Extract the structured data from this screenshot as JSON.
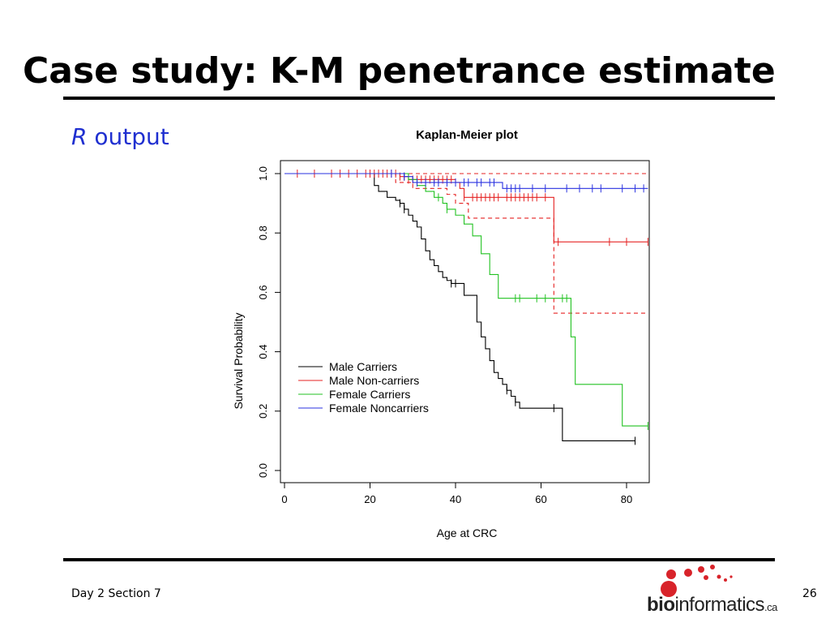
{
  "slide": {
    "title": "Case study: K-M penetrance estimate",
    "subtitle_italic": "R",
    "subtitle_rest": " output",
    "footer_left": "Day 2 Section 7",
    "page_number": "26"
  },
  "logo": {
    "text_bold": "bio",
    "text_regular": "informatics",
    "text_suffix": ".ca",
    "colors": {
      "dots": "#d8232a",
      "text": "#222222"
    }
  },
  "chart_data": {
    "type": "line",
    "subtype": "step",
    "title": "Kaplan-Meier plot",
    "xlabel": "Age at CRC",
    "ylabel": "Survival Probability",
    "xlim": [
      0,
      85
    ],
    "ylim": [
      0,
      1.0
    ],
    "x_ticks": [
      "0",
      "20",
      "40",
      "60",
      "80"
    ],
    "y_ticks": [
      "0.0",
      "0.2",
      "0.4",
      "0.6",
      "0.8",
      "1.0"
    ],
    "legend_position": "bottom-left",
    "grid": false,
    "series": [
      {
        "name": "Male Carriers",
        "color": "#000000",
        "dash": false,
        "x": [
          0,
          21,
          22,
          24,
          26,
          27,
          28,
          29,
          30,
          31,
          32,
          33,
          34,
          35,
          36,
          37,
          38,
          39,
          42,
          45,
          46,
          47,
          48,
          49,
          50,
          51,
          52,
          53,
          54,
          55,
          63,
          65,
          82
        ],
        "y": [
          1.0,
          0.96,
          0.94,
          0.92,
          0.91,
          0.9,
          0.88,
          0.86,
          0.84,
          0.82,
          0.78,
          0.74,
          0.71,
          0.69,
          0.67,
          0.65,
          0.64,
          0.63,
          0.59,
          0.5,
          0.45,
          0.41,
          0.37,
          0.33,
          0.31,
          0.29,
          0.27,
          0.25,
          0.23,
          0.21,
          0.21,
          0.1,
          0.1
        ],
        "censor_x": [
          27,
          28,
          39,
          40,
          52,
          54,
          63,
          82
        ]
      },
      {
        "name": "Male Non-carriers",
        "color": "#e52222",
        "dash": false,
        "x": [
          0,
          27,
          29,
          40,
          41,
          42,
          62,
          63,
          85
        ],
        "y": [
          1.0,
          0.99,
          0.98,
          0.97,
          0.95,
          0.92,
          0.92,
          0.77,
          0.77
        ],
        "censor_x": [
          3,
          7,
          11,
          13,
          15,
          17,
          19,
          20,
          21,
          22,
          23,
          24,
          25,
          26,
          27,
          28,
          29,
          30,
          31,
          32,
          33,
          34,
          35,
          36,
          37,
          38,
          39,
          40,
          42,
          44,
          45,
          46,
          47,
          48,
          49,
          50,
          52,
          53,
          54,
          55,
          56,
          57,
          58,
          59,
          61,
          64,
          76,
          80,
          85
        ]
      },
      {
        "name": "Male Non-carriers CI lower",
        "color": "#e52222",
        "dash": true,
        "x": [
          0,
          26,
          30,
          38,
          40,
          43,
          62,
          63,
          85
        ],
        "y": [
          1.0,
          0.97,
          0.95,
          0.93,
          0.9,
          0.85,
          0.85,
          0.53,
          0.53
        ],
        "censor_x": []
      },
      {
        "name": "Male Non-carriers CI upper",
        "color": "#e52222",
        "dash": true,
        "x": [
          0,
          85
        ],
        "y": [
          1.0,
          1.0
        ],
        "censor_x": []
      },
      {
        "name": "Female Carriers",
        "color": "#22c222",
        "dash": false,
        "x": [
          0,
          29,
          31,
          33,
          35,
          37,
          38,
          40,
          42,
          44,
          46,
          48,
          50,
          52,
          64,
          66,
          67,
          68,
          79,
          85
        ],
        "y": [
          1.0,
          0.98,
          0.96,
          0.94,
          0.92,
          0.9,
          0.88,
          0.86,
          0.83,
          0.79,
          0.73,
          0.66,
          0.58,
          0.58,
          0.58,
          0.58,
          0.45,
          0.29,
          0.15,
          0.15
        ],
        "censor_x": [
          36,
          38,
          54,
          55,
          59,
          61,
          65,
          66,
          85
        ]
      },
      {
        "name": "Female Noncarriers",
        "color": "#2a32e0",
        "dash": false,
        "x": [
          0,
          28,
          30,
          49,
          51,
          85
        ],
        "y": [
          1.0,
          0.99,
          0.97,
          0.97,
          0.95,
          0.95
        ],
        "censor_x": [
          25,
          28,
          31,
          33,
          35,
          36,
          38,
          40,
          42,
          43,
          45,
          46,
          48,
          49,
          52,
          53,
          54,
          55,
          58,
          61,
          66,
          69,
          72,
          74,
          79,
          82,
          84
        ]
      }
    ],
    "legend": [
      "Male Carriers",
      "Male Non-carriers",
      "Female Carriers",
      "Female Noncarriers"
    ]
  }
}
